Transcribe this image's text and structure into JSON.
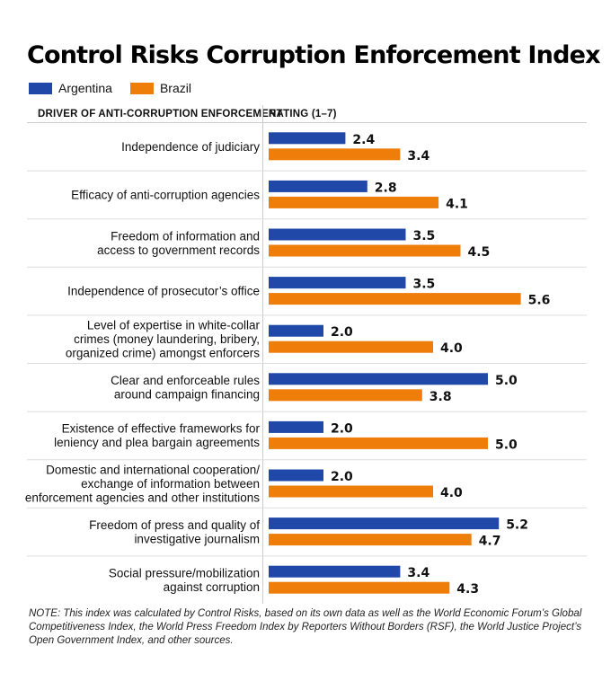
{
  "chart_data": {
    "type": "bar",
    "orientation": "horizontal",
    "title": "Control Risks Corruption Enforcement Index",
    "category_header": "DRIVER OF ANTI-CORRUPTION ENFORCEMENT",
    "value_header": "RATING (1–7)",
    "legend_position": "top-left",
    "categories": [
      [
        "Independence of judiciary"
      ],
      [
        "Efficacy of anti-corruption agencies"
      ],
      [
        "Freedom of information and",
        "access to government records"
      ],
      [
        "Independence of prosecutor’s office"
      ],
      [
        "Level of expertise in white-collar",
        "crimes (money laundering, bribery,",
        "organized crime) amongst enforcers"
      ],
      [
        "Clear and enforceable rules",
        "around campaign financing"
      ],
      [
        "Existence of effective frameworks for",
        "leniency and plea bargain agreements"
      ],
      [
        "Domestic and international cooperation/",
        "exchange of information between",
        "enforcement agencies and other institutions"
      ],
      [
        "Freedom of press and quality of",
        "investigative journalism"
      ],
      [
        "Social pressure/mobilization",
        "against corruption"
      ]
    ],
    "series": [
      {
        "name": "Argentina",
        "color": "#1f48a8",
        "values": [
          2.4,
          2.8,
          3.5,
          3.5,
          2.0,
          5.0,
          2.0,
          2.0,
          5.2,
          3.4
        ]
      },
      {
        "name": "Brazil",
        "color": "#ee7d0a",
        "values": [
          3.4,
          4.1,
          4.5,
          5.6,
          4.0,
          3.8,
          5.0,
          4.0,
          4.7,
          4.3
        ]
      }
    ],
    "xlim": [
      1,
      7
    ],
    "data_labels": true,
    "value_format": "one_decimal"
  },
  "note": "NOTE: This index was calculated by Control Risks, based on its own data as well as the World Economic Forum’s Global Competitiveness Index, the World Press Freedom Index by Reporters Without Borders (RSF), the World Justice Project’s Open Government Index, and other sources."
}
